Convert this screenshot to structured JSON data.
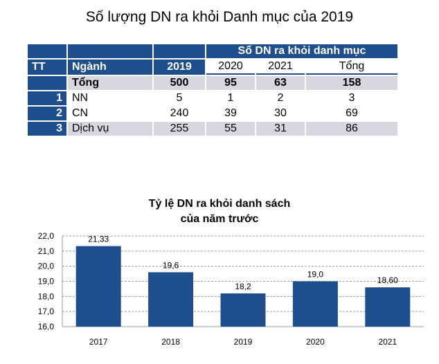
{
  "table": {
    "title": "Số lượng DN ra khỏi Danh mục của 2019",
    "group_header": "Số DN ra khỏi danh mục",
    "headers": {
      "tt": "TT",
      "nganh": "Ngành",
      "y2019": "2019",
      "y2020": "2020",
      "y2021": "2021",
      "tong": "Tổng"
    },
    "rows": [
      {
        "tt": "",
        "nganh": "Tổng",
        "y2019": "500",
        "y2020": "95",
        "y2021": "63",
        "tong": "158"
      },
      {
        "tt": "1",
        "nganh": "NN",
        "y2019": "5",
        "y2020": "1",
        "y2021": "2",
        "tong": "3"
      },
      {
        "tt": "2",
        "nganh": "CN",
        "y2019": "240",
        "y2020": "39",
        "y2021": "30",
        "tong": "69"
      },
      {
        "tt": "3",
        "nganh": "Dịch vụ",
        "y2019": "255",
        "y2020": "55",
        "y2021": "31",
        "tong": "86"
      }
    ]
  },
  "chart_data": {
    "type": "bar",
    "title_line1": "Tỷ lệ DN ra khỏi danh sách",
    "title_line2": "của năm trước",
    "categories": [
      "2017",
      "2018",
      "2019",
      "2020",
      "2021"
    ],
    "values": [
      21.33,
      19.6,
      18.2,
      19.0,
      18.6
    ],
    "labels": [
      "21,33",
      "19,6",
      "18,2",
      "19,0",
      "18,60"
    ],
    "ylim": [
      16,
      22
    ],
    "yticks": [
      "16,0",
      "17,0",
      "18,0",
      "19,0",
      "20,0",
      "21,0",
      "22,0"
    ],
    "bar_color": "#1f4e8c",
    "grid": "dashed"
  }
}
